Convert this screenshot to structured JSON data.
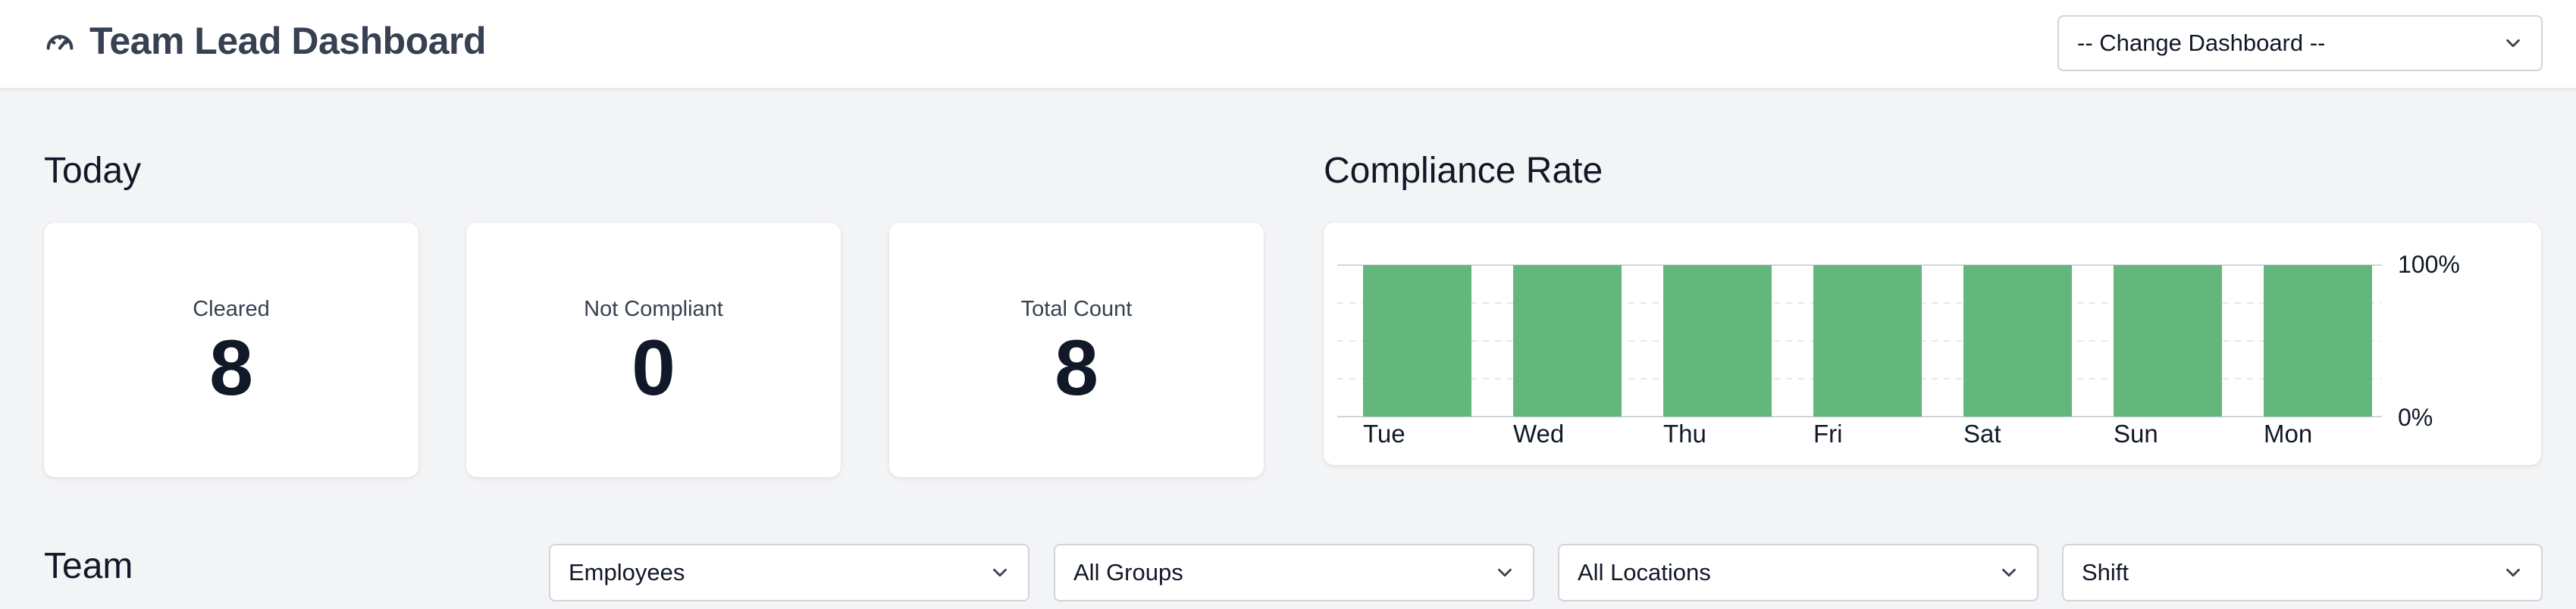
{
  "header": {
    "title": "Team Lead Dashboard",
    "icon": "gauge-icon",
    "dashboard_select": "-- Change Dashboard --"
  },
  "today": {
    "title": "Today",
    "stats": [
      {
        "label": "Cleared",
        "value": "8"
      },
      {
        "label": "Not Compliant",
        "value": "0"
      },
      {
        "label": "Total Count",
        "value": "8"
      }
    ]
  },
  "compliance": {
    "title": "Compliance Rate"
  },
  "team": {
    "title": "Team",
    "filters": [
      "Employees",
      "All Groups",
      "All Locations",
      "Shift"
    ]
  },
  "colors": {
    "bar": "#63b77d",
    "title": "#374151"
  },
  "chart_data": {
    "type": "bar",
    "categories": [
      "Tue",
      "Wed",
      "Thu",
      "Fri",
      "Sat",
      "Sun",
      "Mon"
    ],
    "values": [
      100,
      100,
      100,
      100,
      100,
      100,
      100
    ],
    "title": "Compliance Rate",
    "xlabel": "",
    "ylabel": "",
    "ylim": [
      0,
      100
    ],
    "ytick_labels": [
      "0%",
      "100%"
    ],
    "y_axis_side": "right",
    "grid": true
  }
}
